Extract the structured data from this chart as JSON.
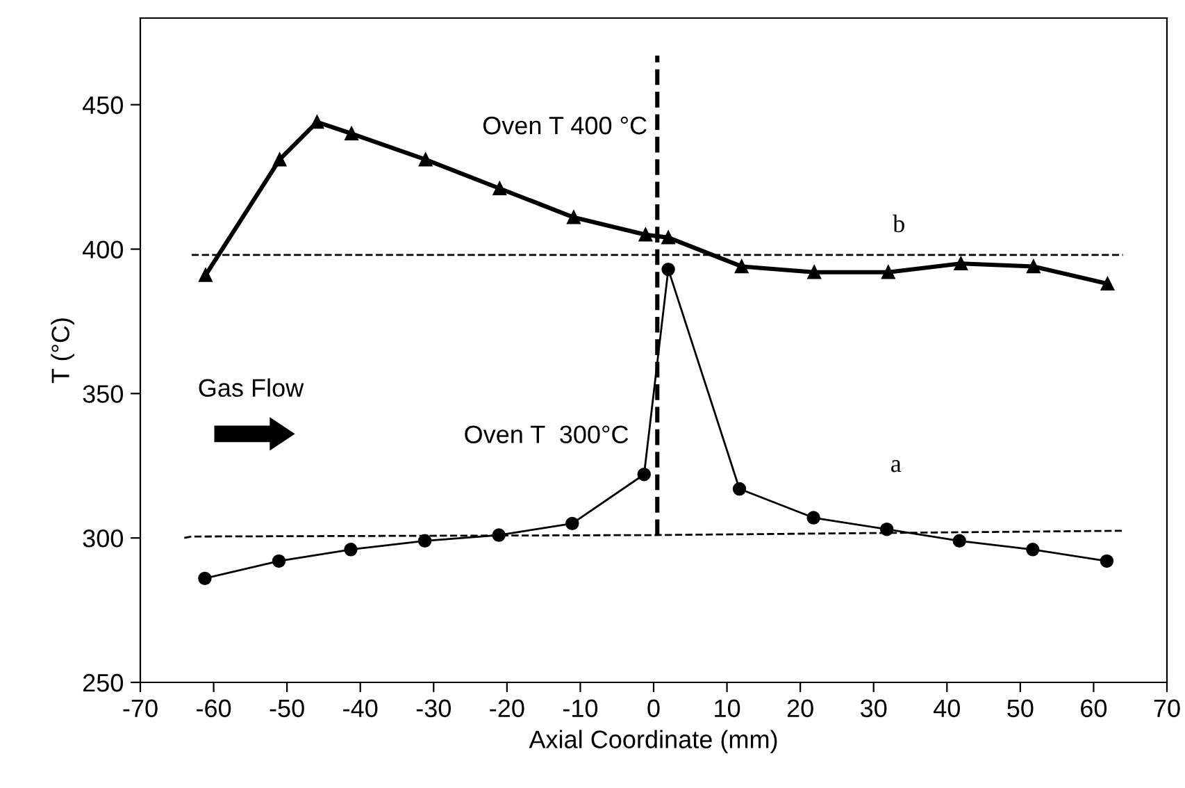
{
  "chart_data": {
    "type": "line",
    "xlabel": "Axial Coordinate (mm)",
    "ylabel": "T (°C)",
    "xlim": [
      -70,
      70
    ],
    "xticks": [
      -70,
      -60,
      -50,
      -40,
      -30,
      -20,
      -10,
      0,
      10,
      20,
      30,
      40,
      50,
      60,
      70
    ],
    "ylim": [
      250,
      480
    ],
    "yticks": [
      250,
      300,
      350,
      400,
      450
    ],
    "grid": false,
    "legend": false,
    "series": [
      {
        "color": "#000000",
        "marker": "triangle",
        "line_style": "solid",
        "x": [
          -61.1,
          -51,
          -45.9,
          -41.2,
          -31.1,
          -21,
          -10.9,
          -1.1,
          2,
          12,
          21.9,
          32,
          41.9,
          51.8,
          61.9
        ],
        "values": [
          391,
          431,
          444,
          440,
          431,
          421,
          411,
          405,
          404,
          394,
          392,
          392,
          395,
          394,
          388
        ]
      },
      {
        "color": "#000000",
        "marker": "circle",
        "line_style": "solid",
        "x": [
          -61.2,
          -51.1,
          -41.3,
          -31.2,
          -21.1,
          -11.1,
          -1.3,
          2,
          11.7,
          21.8,
          31.8,
          41.7,
          51.7,
          61.8
        ],
        "values": [
          286,
          292,
          296,
          299,
          301,
          305,
          322,
          393,
          317,
          307,
          303,
          299,
          296,
          292
        ]
      },
      {
        "color": "#000000",
        "marker": "none",
        "line_style": "dashed",
        "x": [
          -63,
          64
        ],
        "values": [
          398,
          398
        ]
      },
      {
        "color": "#000000",
        "marker": "none",
        "line_style": "dashed",
        "x": [
          -64,
          -63,
          0,
          64
        ],
        "values": [
          300,
          300.5,
          301,
          302.5
        ]
      },
      {
        "color": "#000000",
        "marker": "none",
        "line_style": "dashed",
        "x": [
          0.5,
          0.5
        ],
        "values": [
          301,
          467
        ]
      }
    ],
    "annotations": [
      "Oven T 400 °C",
      "Oven T  300°C",
      "b",
      "a",
      "Gas Flow"
    ]
  }
}
